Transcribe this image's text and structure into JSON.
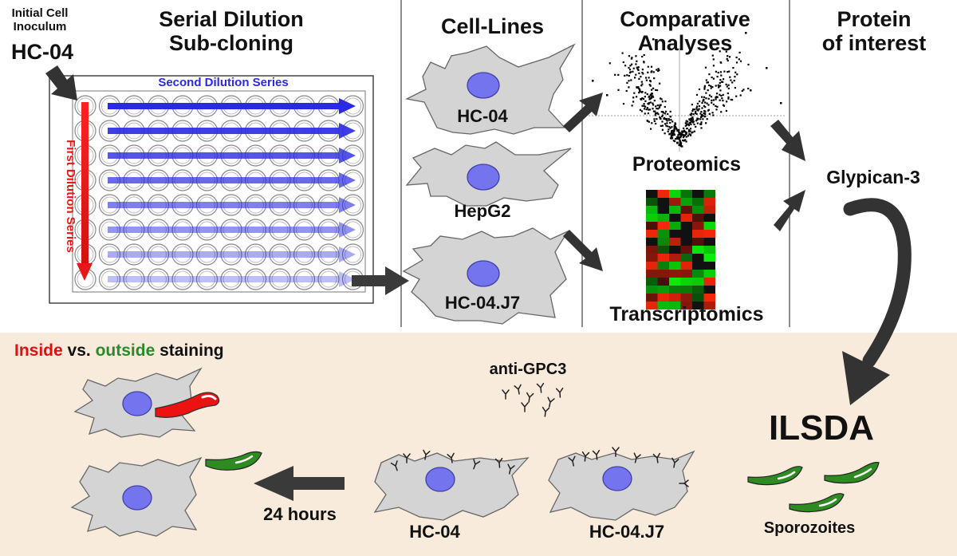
{
  "header": {
    "inoculum_line1": "Initial Cell",
    "inoculum_line2": "Inoculum",
    "inoculum_name": "HC-04",
    "serial_line1": "Serial Dilution",
    "serial_line2": "Sub-cloning",
    "cell_lines": "Cell-Lines",
    "comparative_line1": "Comparative",
    "comparative_line2": "Analyses",
    "protein_line1": "Protein",
    "protein_line2": "of interest"
  },
  "plate": {
    "second_dilution": "Second Dilution Series",
    "first_dilution": "First Dilution Series"
  },
  "cells": [
    "HC-04",
    "HepG2",
    "HC-04.J7"
  ],
  "analyses": {
    "proteomics": "Proteomics",
    "transcriptomics": "Transcriptomics"
  },
  "protein": {
    "name": "Glypican-3"
  },
  "assay": {
    "name": "ILSDA",
    "sporozoites": "Sporozoites",
    "antibody": "anti-GPC3",
    "staining_inside": "Inside",
    "staining_vs": "vs.",
    "staining_outside": "outside",
    "staining_rest": "staining",
    "time": "24 hours",
    "bottom_cells": [
      "HC-04",
      "HC-04.J7"
    ]
  },
  "colors": {
    "blue_arrow": "#2a2ae6",
    "red_arrow": "#e61818",
    "nucleus": "#7474ee",
    "cell_body": "#d4d4d4",
    "panel_bg": "#f8ebdc",
    "sporozoite_green": "#2e8b22",
    "inside_red": "#e01010",
    "outside_green": "#2a8a2a"
  }
}
